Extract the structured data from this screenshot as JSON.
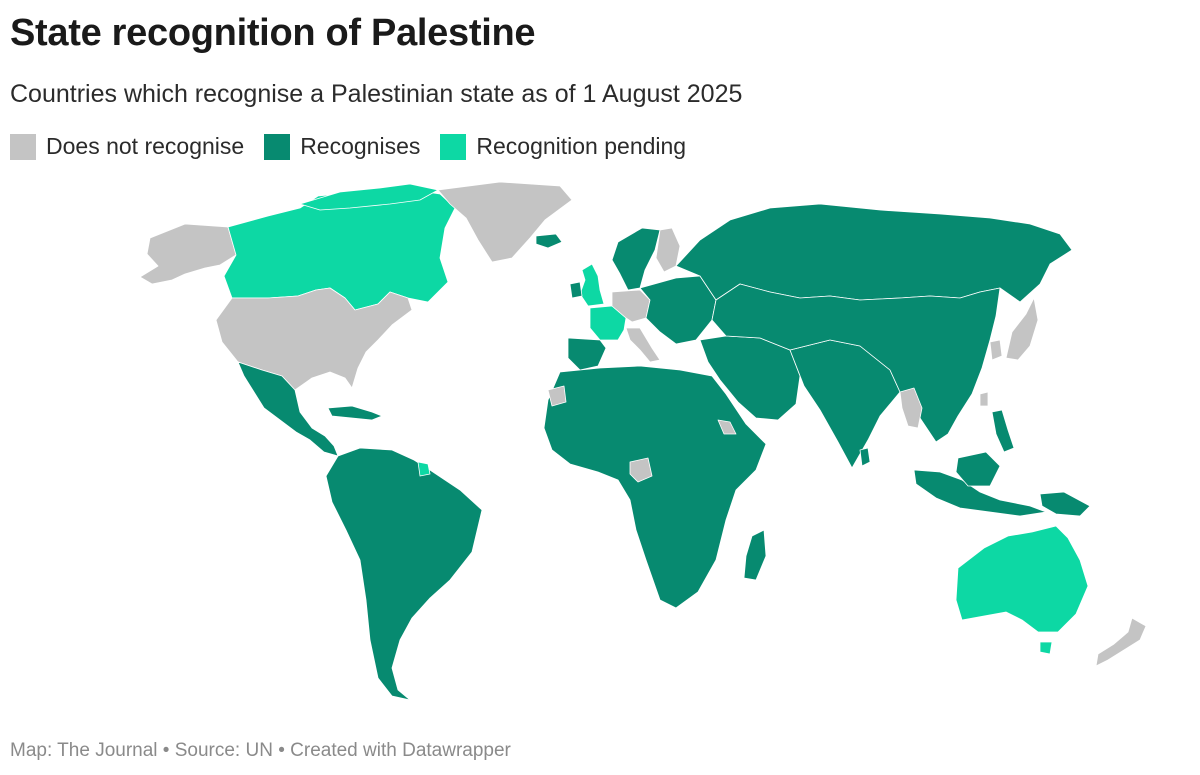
{
  "header": {
    "title": "State recognition of Palestine",
    "subtitle": "Countries which recognise a Palestinian state as of 1 August 2025"
  },
  "legend": [
    {
      "label": "Does not recognise",
      "color": "#c4c4c4"
    },
    {
      "label": "Recognises",
      "color": "#078a70"
    },
    {
      "label": "Recognition pending",
      "color": "#0dd8a4"
    }
  ],
  "footer": {
    "parts": [
      "Map: The Journal",
      "Source: UN",
      "Created with Datawrapper"
    ],
    "separator": " • "
  },
  "map": {
    "regions": [
      {
        "name": "alaska",
        "status": "does-not-recognise"
      },
      {
        "name": "canada",
        "status": "recognition-pending"
      },
      {
        "name": "greenland",
        "status": "does-not-recognise"
      },
      {
        "name": "iceland",
        "status": "recognises"
      },
      {
        "name": "united-states",
        "status": "does-not-recognise"
      },
      {
        "name": "mexico-and-central-america",
        "status": "recognises"
      },
      {
        "name": "caribbean",
        "status": "recognises"
      },
      {
        "name": "south-america",
        "status": "recognises"
      },
      {
        "name": "french-guiana",
        "status": "recognition-pending"
      },
      {
        "name": "scandinavia",
        "status": "recognises"
      },
      {
        "name": "finland",
        "status": "does-not-recognise"
      },
      {
        "name": "united-kingdom",
        "status": "recognition-pending"
      },
      {
        "name": "ireland",
        "status": "recognises"
      },
      {
        "name": "france",
        "status": "recognition-pending"
      },
      {
        "name": "iberia",
        "status": "recognises"
      },
      {
        "name": "central-europe",
        "status": "does-not-recognise"
      },
      {
        "name": "italy",
        "status": "does-not-recognise"
      },
      {
        "name": "eastern-europe",
        "status": "recognises"
      },
      {
        "name": "russia",
        "status": "recognises"
      },
      {
        "name": "africa",
        "status": "recognises"
      },
      {
        "name": "western-sahara",
        "status": "does-not-recognise"
      },
      {
        "name": "cameroon",
        "status": "does-not-recognise"
      },
      {
        "name": "eritrea",
        "status": "does-not-recognise"
      },
      {
        "name": "madagascar",
        "status": "recognises"
      },
      {
        "name": "middle-east",
        "status": "recognises"
      },
      {
        "name": "south-asia",
        "status": "recognises"
      },
      {
        "name": "central-and-east-asia",
        "status": "recognises"
      },
      {
        "name": "myanmar",
        "status": "does-not-recognise"
      },
      {
        "name": "south-korea",
        "status": "does-not-recognise"
      },
      {
        "name": "japan",
        "status": "does-not-recognise"
      },
      {
        "name": "taiwan",
        "status": "does-not-recognise"
      },
      {
        "name": "philippines",
        "status": "recognises"
      },
      {
        "name": "indonesia-and-borneo",
        "status": "recognises"
      },
      {
        "name": "papua-new-guinea",
        "status": "recognises"
      },
      {
        "name": "australia",
        "status": "recognition-pending"
      },
      {
        "name": "tasmania",
        "status": "recognition-pending"
      },
      {
        "name": "new-zealand",
        "status": "does-not-recognise"
      },
      {
        "name": "sri-lanka",
        "status": "recognises"
      }
    ]
  }
}
